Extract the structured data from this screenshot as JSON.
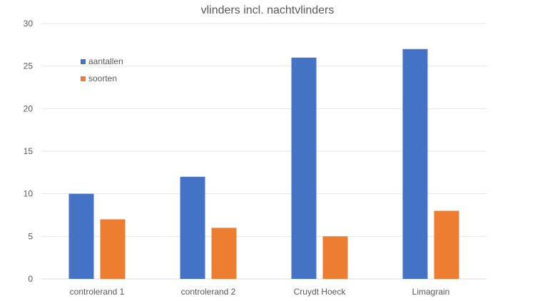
{
  "chart_data": {
    "type": "bar",
    "title": "vlinders incl. nachtvlinders",
    "categories": [
      "controlerand 1",
      "controlerand 2",
      "Cruydt Hoeck",
      "Limagrain"
    ],
    "series": [
      {
        "name": "aantallen",
        "color": "#4472C4",
        "values": [
          10,
          12,
          26,
          27
        ]
      },
      {
        "name": "soorten",
        "color": "#ED7D31",
        "values": [
          7,
          6,
          5,
          8
        ]
      }
    ],
    "xlabel": "",
    "ylabel": "",
    "ylim": [
      0,
      30
    ],
    "yticks": [
      "0",
      "5",
      "10",
      "15",
      "20",
      "25",
      "30"
    ],
    "grid": true,
    "legend_position": "top-left"
  }
}
